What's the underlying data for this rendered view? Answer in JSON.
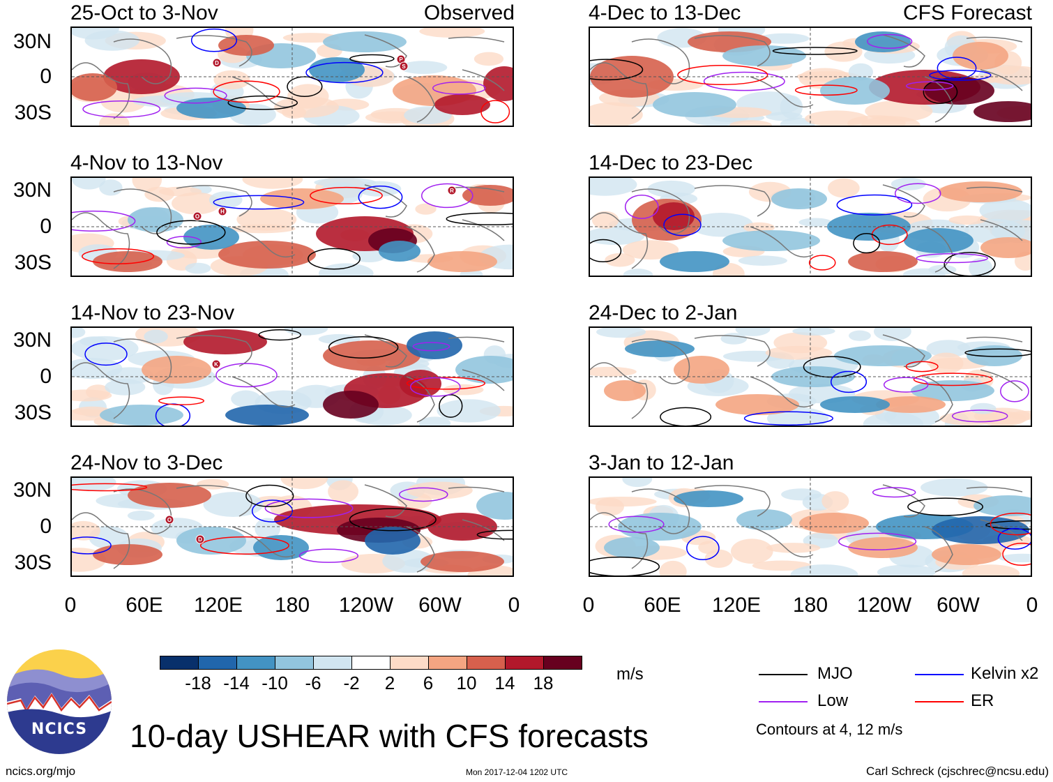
{
  "panels_observed": [
    {
      "title": "25-Oct to 3-Nov",
      "tag": "Observed"
    },
    {
      "title": "4-Nov to 13-Nov",
      "tag": ""
    },
    {
      "title": "14-Nov to 23-Nov",
      "tag": ""
    },
    {
      "title": "24-Nov to 3-Dec",
      "tag": ""
    }
  ],
  "panels_forecast": [
    {
      "title": "4-Dec to 13-Dec",
      "tag": "CFS Forecast"
    },
    {
      "title": "14-Dec to 23-Dec",
      "tag": ""
    },
    {
      "title": "24-Dec to 2-Jan",
      "tag": ""
    },
    {
      "title": "3-Jan to 12-Jan",
      "tag": ""
    }
  ],
  "lat_labels": [
    "30N",
    "0",
    "30S"
  ],
  "lon_labels": [
    "0",
    "60E",
    "120E",
    "180",
    "120W",
    "60W",
    "0"
  ],
  "storm_markers": {
    "p0": [
      "D",
      "P",
      "S"
    ],
    "p1": [
      "O",
      "H",
      "R"
    ],
    "p2": [
      "K"
    ],
    "p3": [
      "O",
      "D"
    ]
  },
  "colorbar": {
    "colors": [
      "#08306b",
      "#2166ac",
      "#4393c3",
      "#92c5de",
      "#d1e5f0",
      "#ffffff",
      "#fddbc7",
      "#f4a582",
      "#d6604d",
      "#b2182b",
      "#67001f"
    ],
    "tick_labels": [
      "-18",
      "-14",
      "-10",
      "-6",
      "-2",
      "2",
      "6",
      "10",
      "14",
      "18"
    ],
    "units": "m/s"
  },
  "legend": [
    {
      "label": "MJO",
      "color": "#000000"
    },
    {
      "label": "Kelvin x2",
      "color": "#0000ff"
    },
    {
      "label": "Low",
      "color": "#a020f0"
    },
    {
      "label": "ER",
      "color": "#ff0000"
    }
  ],
  "contours_note": "Contours at 4, 12 m/s",
  "title": "10-day USHEAR with CFS forecasts",
  "logo_text": "NCICS",
  "footer": {
    "url": "ncics.org/mjo",
    "timestamp": "Mon 2017-12-04 1202 UTC",
    "author": "Carl Schreck (cjschrec@ncsu.edu)"
  }
}
